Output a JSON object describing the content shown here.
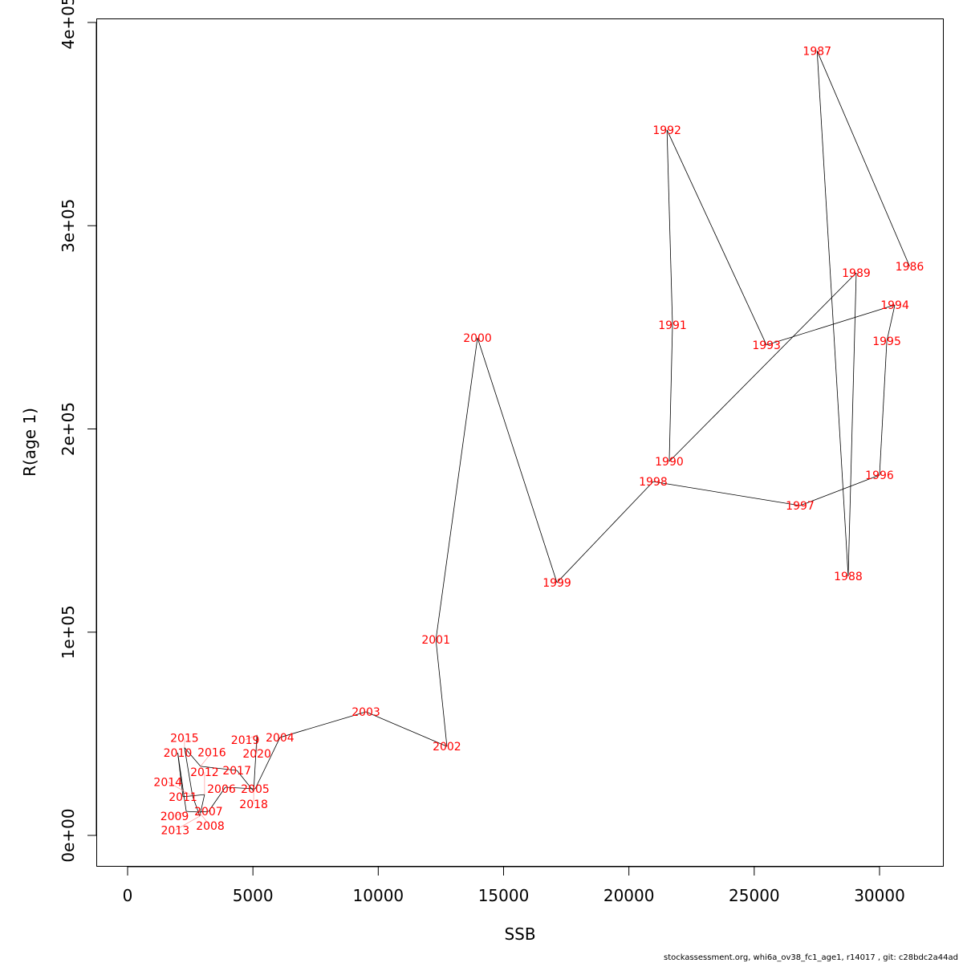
{
  "chart_data": {
    "type": "line",
    "title": "",
    "xlabel": "SSB",
    "ylabel": "R(age 1)",
    "xlim": [
      -1250,
      32500
    ],
    "ylim": [
      -15000,
      402000
    ],
    "xticks": [
      0,
      5000,
      10000,
      15000,
      20000,
      25000,
      30000
    ],
    "xtick_labels": [
      "0",
      "5000",
      "10000",
      "15000",
      "20000",
      "25000",
      "30000"
    ],
    "yticks": [
      0,
      100000,
      200000,
      300000,
      400000
    ],
    "ytick_labels": [
      "0e+00",
      "1e+05",
      "2e+05",
      "3e+05",
      "4e+05"
    ],
    "grid": false,
    "line_color": "#000000",
    "label_color": "#ff0000",
    "points": [
      {
        "label": "1986",
        "x": 31200,
        "y": 280000
      },
      {
        "label": "1987",
        "x": 27510,
        "y": 386000
      },
      {
        "label": "1988",
        "x": 28750,
        "y": 127500
      },
      {
        "label": "1989",
        "x": 29070,
        "y": 276800
      },
      {
        "label": "1990",
        "x": 21610,
        "y": 184000
      },
      {
        "label": "1991",
        "x": 21740,
        "y": 251100
      },
      {
        "label": "1992",
        "x": 21520,
        "y": 347100
      },
      {
        "label": "1993",
        "x": 25490,
        "y": 241300
      },
      {
        "label": "1994",
        "x": 30610,
        "y": 261000
      },
      {
        "label": "1995",
        "x": 30290,
        "y": 243200
      },
      {
        "label": "1996",
        "x": 30000,
        "y": 177300
      },
      {
        "label": "1997",
        "x": 26830,
        "y": 162300
      },
      {
        "label": "1998",
        "x": 20970,
        "y": 174100
      },
      {
        "label": "1999",
        "x": 17130,
        "y": 124400
      },
      {
        "label": "2000",
        "x": 13960,
        "y": 244800
      },
      {
        "label": "2001",
        "x": 12300,
        "y": 96300
      },
      {
        "label": "2002",
        "x": 12740,
        "y": 43800
      },
      {
        "label": "2003",
        "x": 9510,
        "y": 60800
      },
      {
        "label": "2004",
        "x": 6080,
        "y": 48200
      },
      {
        "label": "2005",
        "x": 5090,
        "y": 22900
      },
      {
        "label": "2006",
        "x": 3900,
        "y": 23700
      },
      {
        "label": "2007",
        "x": 3230,
        "y": 11800
      },
      {
        "label": "2008",
        "x": 2850,
        "y": 11500
      },
      {
        "label": "2009",
        "x": 2340,
        "y": 11800
      },
      {
        "label": "2010",
        "x": 2000,
        "y": 40700
      },
      {
        "label": "2011",
        "x": 2210,
        "y": 19000
      },
      {
        "label": "2012",
        "x": 3070,
        "y": 20100
      },
      {
        "label": "2013",
        "x": 2880,
        "y": 9500
      },
      {
        "label": "2014",
        "x": 2590,
        "y": 19400
      },
      {
        "label": "2015",
        "x": 2270,
        "y": 43200
      },
      {
        "label": "2016",
        "x": 2910,
        "y": 34000
      },
      {
        "label": "2017",
        "x": 4360,
        "y": 32000
      },
      {
        "label": "2018",
        "x": 5030,
        "y": 21700
      },
      {
        "label": "2019",
        "x": 5160,
        "y": 49400
      },
      {
        "label": "2020",
        "x": 5160,
        "y": 45000
      }
    ]
  },
  "footer": "stockassessment.org, whi6a_ov38_fc1_age1, r14017 , git: c28bdc2a44ad"
}
